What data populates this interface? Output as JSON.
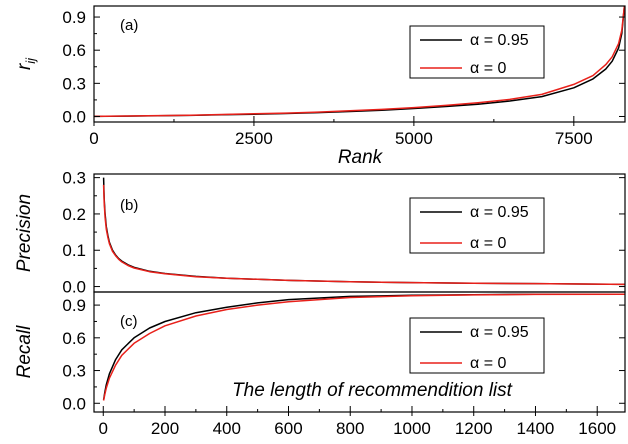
{
  "colors": {
    "series_1": "#000000",
    "series_2": "#e8201a"
  },
  "chart_data": [
    {
      "type": "line",
      "panel_label": "(a)",
      "title": "",
      "ylabel": "r",
      "ylabel_sub": "ij",
      "xlabel": "Rank",
      "xlim": [
        0,
        8300
      ],
      "ylim": [
        -0.05,
        1.0
      ],
      "xticks": [
        0,
        2500,
        5000,
        7500
      ],
      "yticks": [
        0.0,
        0.3,
        0.6,
        0.9
      ],
      "xtick_labels": [
        "0",
        "2500",
        "5000",
        "7500"
      ],
      "ytick_labels": [
        "0.0",
        "0.3",
        "0.6",
        "0.9"
      ],
      "grid": false,
      "legend_position": "top-right",
      "series": [
        {
          "name": "α = 0.95",
          "color": "#000000",
          "x": [
            0,
            500,
            1000,
            1500,
            2000,
            2500,
            3000,
            3500,
            4000,
            4500,
            5000,
            5500,
            6000,
            6500,
            7000,
            7500,
            7800,
            8000,
            8100,
            8200,
            8250,
            8290
          ],
          "y": [
            0.001,
            0.003,
            0.006,
            0.01,
            0.015,
            0.02,
            0.027,
            0.035,
            0.045,
            0.057,
            0.072,
            0.09,
            0.11,
            0.14,
            0.18,
            0.26,
            0.34,
            0.43,
            0.5,
            0.62,
            0.75,
            1.0
          ]
        },
        {
          "name": "α = 0",
          "color": "#e8201a",
          "x": [
            0,
            500,
            1000,
            1500,
            2000,
            2500,
            3000,
            3500,
            4000,
            4500,
            5000,
            5500,
            6000,
            6500,
            7000,
            7500,
            7800,
            8000,
            8100,
            8200,
            8250,
            8290
          ],
          "y": [
            0.001,
            0.004,
            0.008,
            0.012,
            0.018,
            0.024,
            0.031,
            0.04,
            0.051,
            0.064,
            0.08,
            0.1,
            0.125,
            0.155,
            0.2,
            0.29,
            0.37,
            0.47,
            0.54,
            0.66,
            0.78,
            1.0
          ]
        }
      ]
    },
    {
      "type": "line",
      "panel_label": "(b)",
      "title": "",
      "ylabel": "Precision",
      "xlabel": "",
      "xlim": [
        -30,
        1690
      ],
      "ylim": [
        -0.015,
        0.31
      ],
      "yticks": [
        0.0,
        0.1,
        0.2,
        0.3
      ],
      "ytick_labels": [
        "0.0",
        "0.1",
        "0.2",
        "0.3"
      ],
      "grid": false,
      "legend_position": "top-right",
      "series": [
        {
          "name": "α = 0.95",
          "color": "#000000",
          "x": [
            1,
            3,
            6,
            10,
            15,
            20,
            30,
            40,
            50,
            60,
            80,
            100,
            150,
            200,
            300,
            400,
            600,
            800,
            1000,
            1200,
            1400,
            1690
          ],
          "y": [
            0.3,
            0.24,
            0.2,
            0.165,
            0.14,
            0.122,
            0.1,
            0.087,
            0.077,
            0.07,
            0.06,
            0.053,
            0.042,
            0.036,
            0.028,
            0.023,
            0.017,
            0.013,
            0.011,
            0.009,
            0.008,
            0.006
          ]
        },
        {
          "name": "α = 0",
          "color": "#e8201a",
          "x": [
            1,
            3,
            6,
            10,
            15,
            20,
            30,
            40,
            50,
            60,
            80,
            100,
            150,
            200,
            300,
            400,
            600,
            800,
            1000,
            1200,
            1400,
            1690
          ],
          "y": [
            0.28,
            0.23,
            0.19,
            0.158,
            0.135,
            0.118,
            0.097,
            0.085,
            0.075,
            0.068,
            0.058,
            0.051,
            0.041,
            0.035,
            0.027,
            0.023,
            0.017,
            0.013,
            0.011,
            0.009,
            0.008,
            0.006
          ]
        }
      ]
    },
    {
      "type": "line",
      "panel_label": "(c)",
      "title": "",
      "ylabel": "Recall",
      "xlabel": "The length of recommendition list",
      "xlim": [
        -30,
        1690
      ],
      "ylim": [
        -0.08,
        1.02
      ],
      "xticks": [
        0,
        200,
        400,
        600,
        800,
        1000,
        1200,
        1400,
        1600
      ],
      "yticks": [
        0.0,
        0.3,
        0.6,
        0.9
      ],
      "xtick_labels": [
        "0",
        "200",
        "400",
        "600",
        "800",
        "1000",
        "1200",
        "1400",
        "1600"
      ],
      "ytick_labels": [
        "0.0",
        "0.3",
        "0.6",
        "0.9"
      ],
      "grid": false,
      "legend_position": "right",
      "series": [
        {
          "name": "α = 0.95",
          "color": "#000000",
          "x": [
            1,
            5,
            10,
            20,
            40,
            60,
            100,
            150,
            200,
            300,
            400,
            500,
            600,
            800,
            1000,
            1200,
            1400,
            1690
          ],
          "y": [
            0.03,
            0.1,
            0.17,
            0.27,
            0.4,
            0.49,
            0.6,
            0.69,
            0.75,
            0.83,
            0.88,
            0.92,
            0.95,
            0.98,
            0.99,
            0.995,
            1.0,
            1.0
          ]
        },
        {
          "name": "α = 0",
          "color": "#e8201a",
          "x": [
            1,
            5,
            10,
            20,
            40,
            60,
            100,
            150,
            200,
            300,
            400,
            500,
            600,
            800,
            1000,
            1200,
            1400,
            1690
          ],
          "y": [
            0.025,
            0.08,
            0.14,
            0.23,
            0.35,
            0.44,
            0.55,
            0.64,
            0.71,
            0.8,
            0.86,
            0.9,
            0.93,
            0.97,
            0.985,
            0.993,
            0.998,
            1.0
          ]
        }
      ]
    }
  ]
}
